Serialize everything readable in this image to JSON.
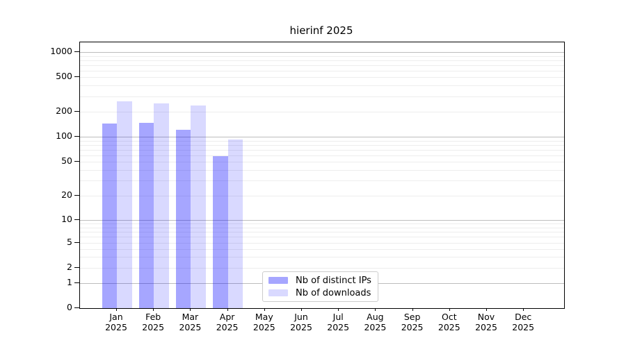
{
  "title": "hierinf 2025",
  "axes": {
    "x_year": "2025",
    "x_months": [
      "Jan",
      "Feb",
      "Mar",
      "Apr",
      "May",
      "Jun",
      "Jul",
      "Aug",
      "Sep",
      "Oct",
      "Nov",
      "Dec"
    ],
    "y_tick_labels": [
      "1000",
      "500",
      "200",
      "100",
      "50",
      "20",
      "10",
      "5",
      "2",
      "1",
      "0"
    ]
  },
  "legend": {
    "items": [
      "Nb of distinct IPs",
      "Nb of downloads"
    ]
  },
  "colors": {
    "bar_distinct_ips": "rgba(0,0,255,0.35)",
    "bar_downloads": "rgba(0,0,255,0.15)",
    "grid_major": "#bdbdbd",
    "grid_minor": "#ededed",
    "axis": "#000000"
  },
  "chart_data": {
    "type": "bar",
    "title": "hierinf 2025",
    "categories": [
      "Jan 2025",
      "Feb 2025",
      "Mar 2025",
      "Apr 2025",
      "May 2025",
      "Jun 2025",
      "Jul 2025",
      "Aug 2025",
      "Sep 2025",
      "Oct 2025",
      "Nov 2025",
      "Dec 2025"
    ],
    "series": [
      {
        "name": "Nb of distinct IPs",
        "values": [
          145,
          148,
          122,
          58,
          0,
          0,
          0,
          0,
          0,
          0,
          0,
          0
        ]
      },
      {
        "name": "Nb of downloads",
        "values": [
          265,
          250,
          235,
          93,
          0,
          0,
          0,
          0,
          0,
          0,
          0,
          0
        ]
      }
    ],
    "yscale": "symlog",
    "yticks": [
      0,
      1,
      2,
      5,
      10,
      20,
      50,
      100,
      200,
      500,
      1000
    ],
    "ylim": [
      0,
      1300
    ],
    "grid": true,
    "legend_position": "lower center"
  }
}
